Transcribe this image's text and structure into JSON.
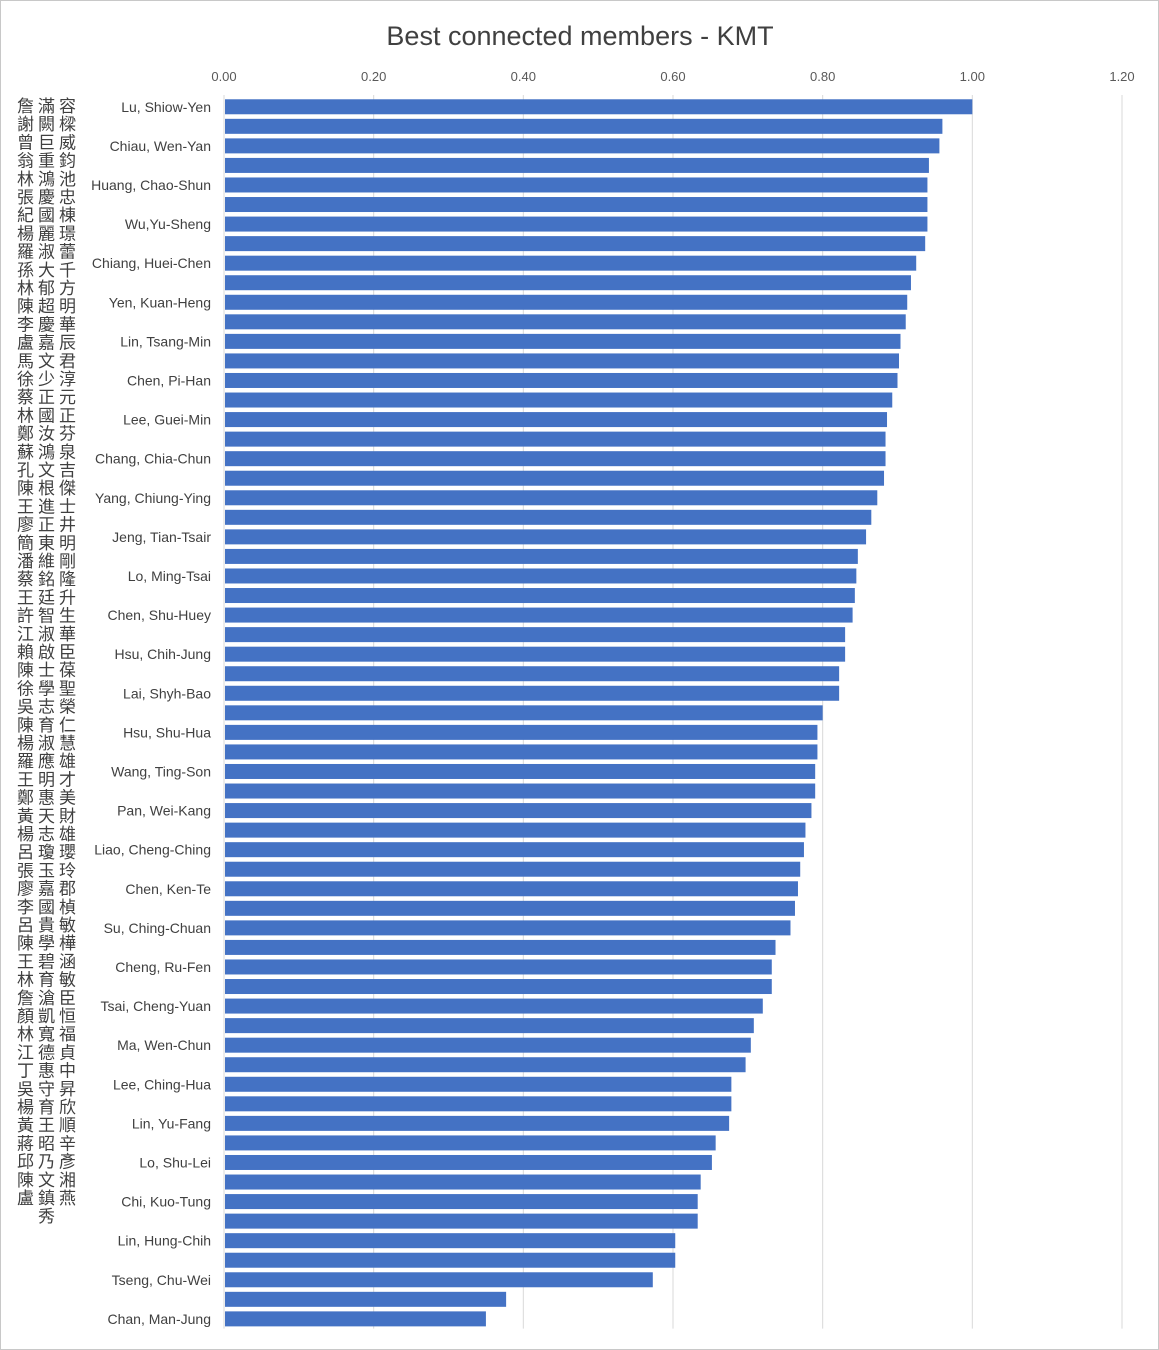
{
  "chart_data": {
    "type": "bar",
    "orientation": "horizontal",
    "title": "Best connected members - KMT",
    "xlabel": "",
    "ylabel": "",
    "xlim": [
      0,
      1.2
    ],
    "x_ticks": [
      "0.00",
      "0.20",
      "0.40",
      "0.60",
      "0.80",
      "1.00",
      "1.20"
    ],
    "x_axis_position": "top",
    "grid": true,
    "legend": "none",
    "bar_color": "#4472c4",
    "categories": [
      "Lu, Shiow-Yen",
      "",
      "Chiau, Wen-Yan",
      "",
      "Huang, Chao-Shun",
      "",
      "Wu,Yu-Sheng",
      "",
      "Chiang, Huei-Chen",
      "",
      "Yen, Kuan-Heng",
      "",
      "Lin, Tsang-Min",
      "",
      "Chen, Pi-Han",
      "",
      "Lee, Guei-Min",
      "",
      "Chang, Chia-Chun",
      "",
      "Yang, Chiung-Ying",
      "",
      "Jeng, Tian-Tsair",
      "",
      "Lo, Ming-Tsai",
      "",
      "Chen, Shu-Huey",
      "",
      "Hsu, Chih-Jung",
      "",
      "Lai, Shyh-Bao",
      "",
      "Hsu, Shu-Hua",
      "",
      "Wang, Ting-Son",
      "",
      "Pan, Wei-Kang",
      "",
      "Liao, Cheng-Ching",
      "",
      "Chen, Ken-Te",
      "",
      "Su, Ching-Chuan",
      "",
      "Cheng, Ru-Fen",
      "",
      "Tsai, Cheng-Yuan",
      "",
      "Ma, Wen-Chun",
      "",
      "Lee, Ching-Hua",
      "",
      "Lin, Yu-Fang",
      "",
      "Lo, Shu-Lei",
      "",
      "Chi, Kuo-Tung",
      "",
      "Lin, Hung-Chih",
      "",
      "Tseng, Chu-Wei",
      "",
      "Chan, Man-Jung"
    ],
    "values": [
      1.0,
      0.96,
      0.956,
      0.942,
      0.94,
      0.94,
      0.94,
      0.937,
      0.925,
      0.918,
      0.913,
      0.911,
      0.904,
      0.902,
      0.9,
      0.893,
      0.886,
      0.884,
      0.884,
      0.882,
      0.873,
      0.865,
      0.858,
      0.847,
      0.845,
      0.843,
      0.84,
      0.83,
      0.83,
      0.822,
      0.822,
      0.8,
      0.793,
      0.793,
      0.79,
      0.79,
      0.785,
      0.777,
      0.775,
      0.77,
      0.767,
      0.763,
      0.757,
      0.737,
      0.732,
      0.732,
      0.72,
      0.708,
      0.704,
      0.697,
      0.678,
      0.678,
      0.675,
      0.657,
      0.652,
      0.637,
      0.633,
      0.633,
      0.603,
      0.603,
      0.573,
      0.377,
      0.35
    ],
    "side_labels_chinese": [
      "詹謝曾翁林張紀楊羅孫林陳李盧馬徐蔡林鄭蘇孔陳王廖簡潘蔡王許江賴陳徐吳陳楊羅王鄭黃楊呂張廖李呂陳王林詹顏林江丁吳楊黃蔣邱陳盧",
      "滿闕巨重鴻慶國麗淑大郁超慶嘉文少正國汝鴻文根進正東維銘廷智淑啟士學志育淑應明惠天志瓊玉嘉國貴學碧育滄凱寬德惠守育王昭乃文鎮秀",
      "容樑威鈞池忠棟璟蕾千方明華辰君淳元正芬泉吉傑士井明剛隆升生華臣葆聖榮仁慧雄才美財雄瓔玲郡楨敏樺涵敏臣恒福貞中昇欣順辛彥湘燕"
    ]
  }
}
